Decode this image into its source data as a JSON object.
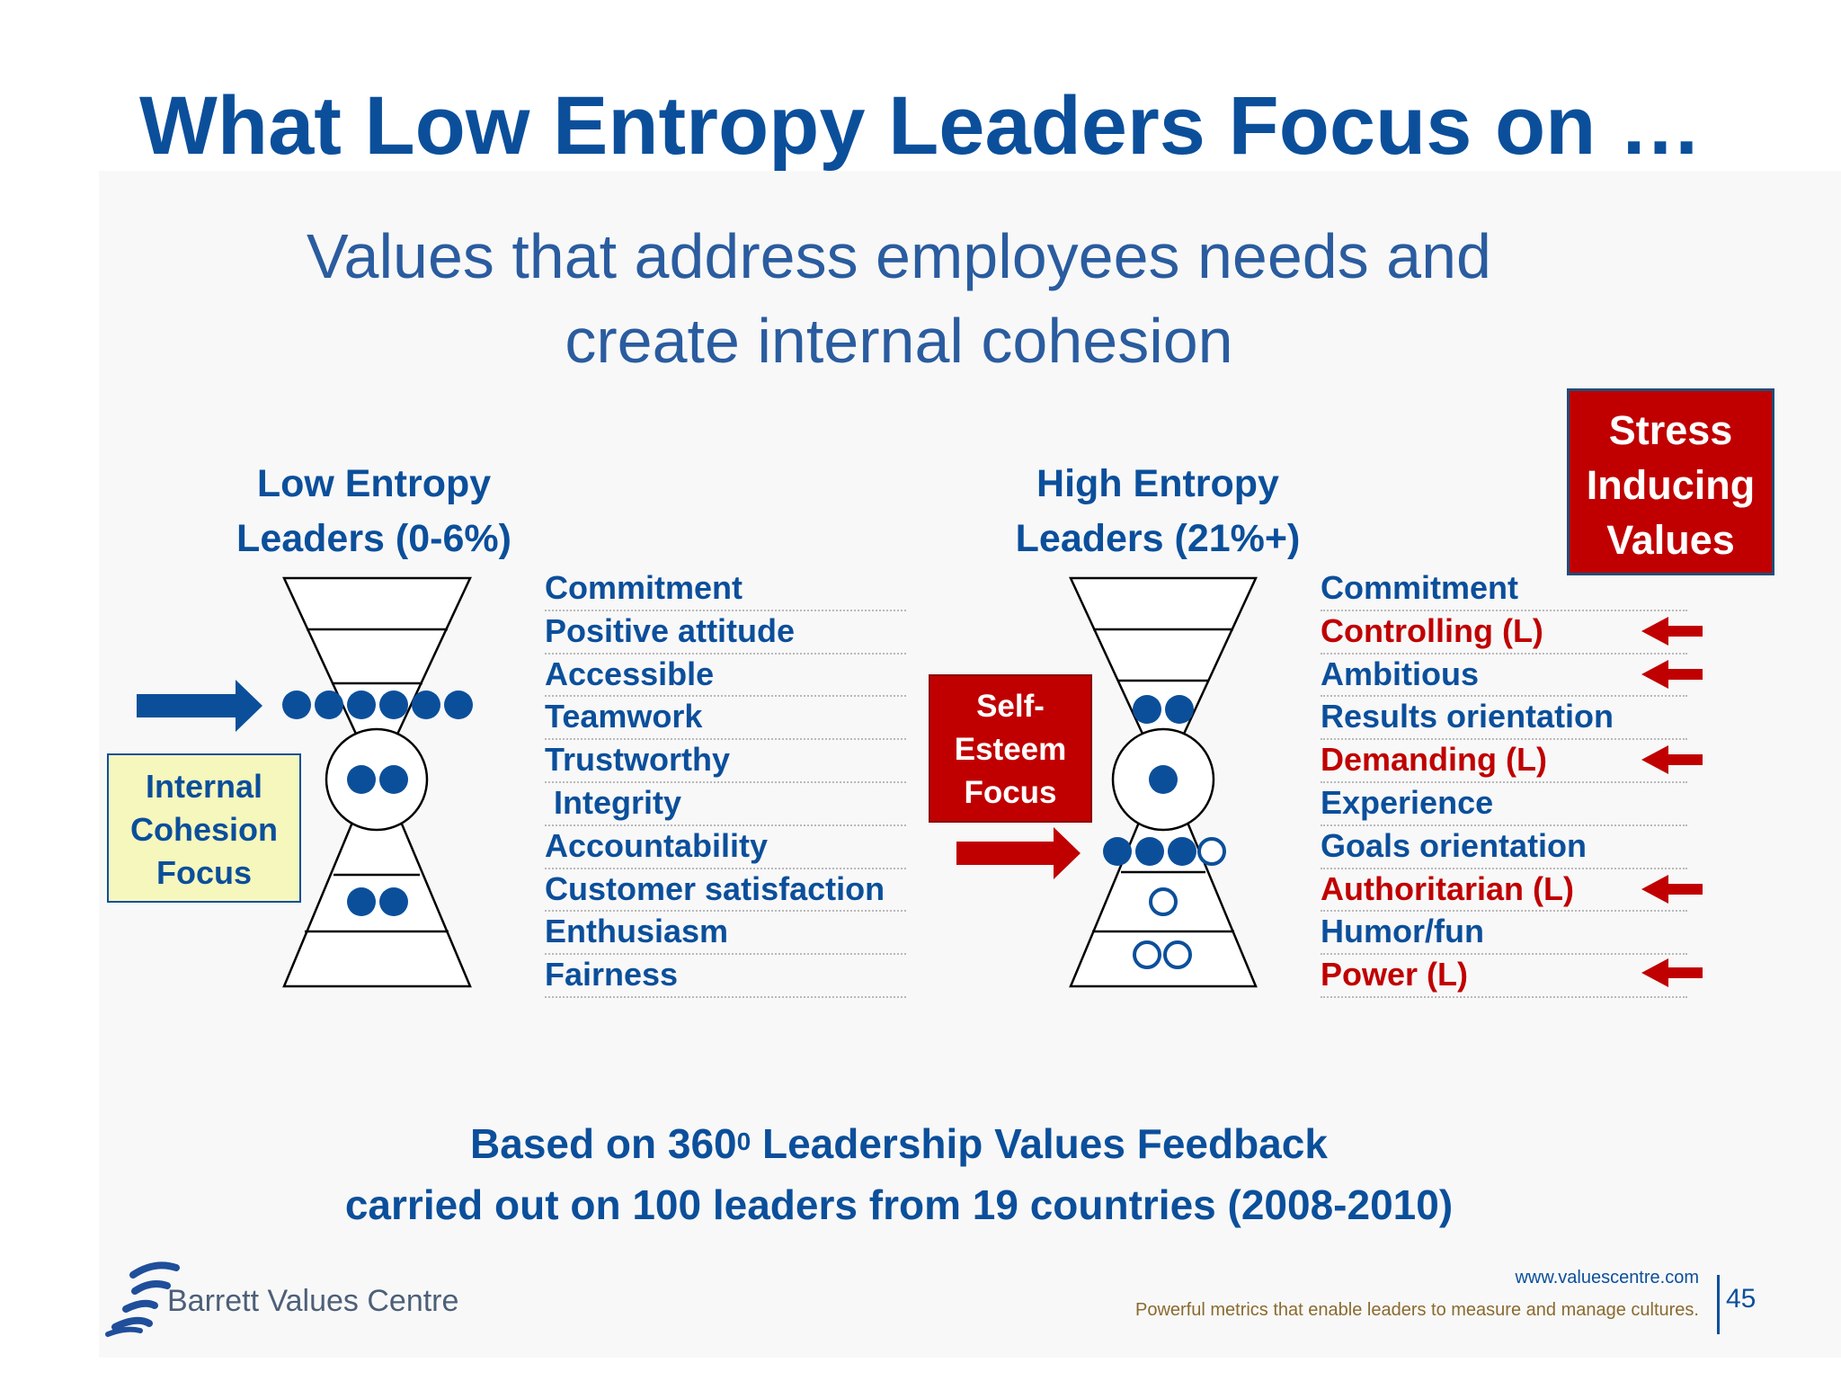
{
  "title": "What Low Entropy Leaders Focus on …",
  "subtitle": [
    "Values that address employees needs and",
    "create internal cohesion"
  ],
  "low_entropy": {
    "heading": [
      "Low Entropy",
      "Leaders (0-6%)"
    ],
    "focus_box": [
      "Internal",
      "Cohesion",
      "Focus"
    ],
    "values": [
      "Commitment",
      "Positive attitude",
      "Accessible",
      "Teamwork",
      "Trustworthy",
      " Integrity",
      "Accountability",
      "Customer satisfaction",
      "Enthusiasm",
      "Fairness"
    ]
  },
  "high_entropy": {
    "heading": [
      "High Entropy",
      "Leaders (21%+)"
    ],
    "focus_box": [
      "Self-",
      "Esteem",
      "Focus"
    ],
    "values": [
      {
        "label": "Commitment",
        "stress": false
      },
      {
        "label": "Controlling (L)",
        "stress": true
      },
      {
        "label": "Ambitious",
        "stress": true
      },
      {
        "label": "Results orientation",
        "stress": false
      },
      {
        "label": "Demanding (L)",
        "stress": true
      },
      {
        "label": "Experience",
        "stress": false
      },
      {
        "label": "Goals orientation",
        "stress": false
      },
      {
        "label": "Authoritarian (L)",
        "stress": true
      },
      {
        "label": "Humor/fun",
        "stress": false
      },
      {
        "label": "Power (L)",
        "stress": true
      }
    ]
  },
  "stress_box": [
    "Stress",
    "Inducing",
    "Values"
  ],
  "footer": {
    "line1_before": "Based on 360",
    "line1_sup": "0",
    "line1_after": " Leadership Values Feedback",
    "line2": "carried out on 100 leaders from 19 countries (2008-2010)"
  },
  "brand": {
    "logo_text": "Barrett Values Centre",
    "url": "www.valuescentre.com",
    "tagline": "Powerful metrics that enable leaders to measure and manage cultures.",
    "page_number": "45"
  },
  "colors": {
    "blue": "#0b4f9b",
    "red": "#c00000",
    "yellow": "#f6f7bd"
  }
}
